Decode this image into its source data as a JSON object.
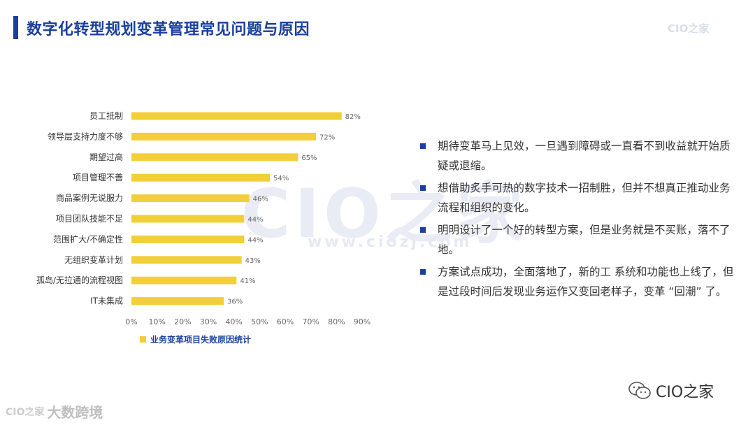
{
  "header": {
    "title": "数字化转型规划变革管理常见问题与原因",
    "logo": "CIO之家"
  },
  "watermark": {
    "big": "CIO之家",
    "url": "www.ciozj.com"
  },
  "chart_data": {
    "type": "bar",
    "orientation": "horizontal",
    "categories": [
      "员工抵制",
      "领导层支持力度不够",
      "期望过高",
      "项目管理不善",
      "商品案例无说服力",
      "项目团队技能不足",
      "范围扩大/不确定性",
      "无组织变革计划",
      "孤岛/无拉通的流程视图",
      "IT未集成"
    ],
    "values": [
      82,
      72,
      65,
      54,
      46,
      44,
      44,
      43,
      41,
      36
    ],
    "value_labels": [
      "82%",
      "72%",
      "65%",
      "54%",
      "46%",
      "44%",
      "44%",
      "43%",
      "41%",
      "36%"
    ],
    "x_ticks": [
      "0%",
      "10%",
      "20%",
      "30%",
      "40%",
      "50%",
      "60%",
      "70%",
      "80%",
      "90%"
    ],
    "xlim": [
      0,
      90
    ],
    "legend": "业务变革项目失败原因统计",
    "legend_position": "bottom-left",
    "bar_color": "#f2cf38",
    "grid": false
  },
  "bullets": [
    "期待变革马上见效，一旦遇到障碍或一直看不到收益就开始质疑或退缩。",
    "想借助炙手可热的数字技术一招制胜，但并不想真正推动业务流程和组织的变化。",
    "明明设计了一个好的转型方案，但是业务就是不买账，落不了地。",
    "方案试点成功，全面落地了，新的工 系统和功能也上线了，但是过段时间后发现业务运作又变回老样子，变革 “回潮” 了。"
  ],
  "footer": {
    "right_label": "CIO之家",
    "left_label": "大数跨境",
    "left_mark": "CIO之家"
  },
  "colors": {
    "accent": "#1a3f9e",
    "bar": "#f2cf38",
    "text": "#333333"
  }
}
